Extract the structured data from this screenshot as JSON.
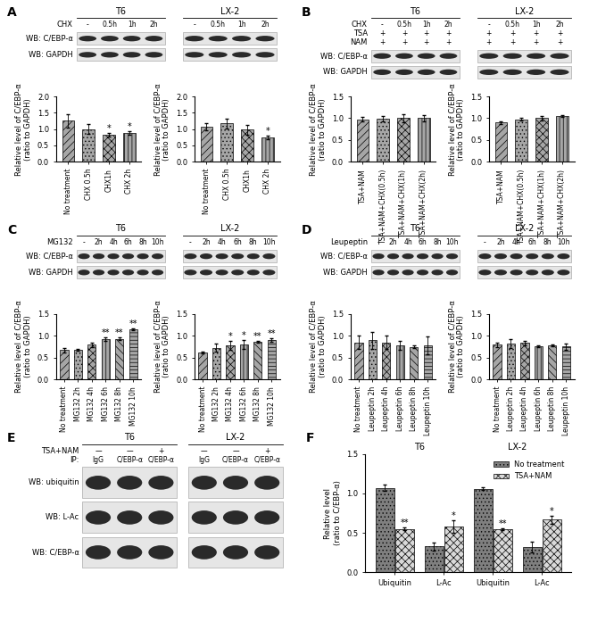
{
  "chart_data": [
    {
      "panel": "A",
      "type": "bar",
      "y_label": "Relative level of C/EBP-α\n(ratio to GAPDH)",
      "categories": [
        "No treatment",
        "CHX 0.5h",
        "CHX1h",
        "CHX 2h"
      ],
      "values": [
        1.25,
        1.0,
        0.82,
        0.88
      ],
      "errors": [
        0.2,
        0.15,
        0.05,
        0.05
      ],
      "annotations": [
        null,
        null,
        "*",
        "*"
      ],
      "color": "#a6a6a6",
      "ylim": [
        0,
        2
      ],
      "yticks": [
        {
          "value": 0,
          "label": "0.0"
        },
        0.5,
        {
          "value": 1,
          "label": "1.0"
        },
        1.5,
        {
          "value": 2,
          "label": "2.0"
        }
      ]
    },
    {
      "panel": "A",
      "type": "bar",
      "y_label": "Relative level of C/EBP-α\n(ratio to GAPDH)",
      "categories": [
        "No treatment",
        "CHX 0.5h",
        "CHX1h",
        "CHX 2h"
      ],
      "values": [
        1.07,
        1.18,
        0.98,
        0.75
      ],
      "errors": [
        0.12,
        0.15,
        0.15,
        0.05
      ],
      "annotations": [
        null,
        null,
        null,
        "*"
      ],
      "color": "#a6a6a6",
      "ylim": [
        0,
        2
      ],
      "yticks": [
        {
          "value": 0,
          "label": "0.0"
        },
        0.5,
        {
          "value": 1,
          "label": "1.0"
        },
        1.5,
        {
          "value": 2,
          "label": "2.0"
        }
      ]
    },
    {
      "panel": "B",
      "type": "bar",
      "y_label": "Relative level of C/EBP-α\n(ratio to GAPDH)",
      "categories": [
        "TSA+NAM",
        "TSA+NAM+CHX(0.5h)",
        "TSA+NAM+CHX(1h)",
        "TSA+NAM+CHX(2h)"
      ],
      "values": [
        0.97,
        0.98,
        1.0,
        1.0
      ],
      "errors": [
        0.05,
        0.06,
        0.1,
        0.07
      ],
      "annotations": [
        null,
        null,
        null,
        null
      ],
      "color": "#a6a6a6",
      "ylim": [
        0,
        1.5
      ],
      "yticks": [
        {
          "value": 0,
          "label": "0.0"
        },
        0.5,
        {
          "value": 1,
          "label": "1.0"
        },
        1.5
      ]
    },
    {
      "panel": "B",
      "type": "bar",
      "y_label": "Relative level of C/EBP-α\n(ratio to GAPDH)",
      "categories": [
        "TSA+NAM",
        "TSA+NAM+CHX(0.5h)",
        "TSA+NAM+CHX(1h)",
        "TSA+NAM+CHX(2h)"
      ],
      "values": [
        0.9,
        0.97,
        1.0,
        1.05
      ],
      "errors": [
        0.03,
        0.03,
        0.05,
        0.03
      ],
      "annotations": [
        null,
        null,
        null,
        null
      ],
      "color": "#a6a6a6",
      "ylim": [
        0,
        1.5
      ],
      "yticks": [
        {
          "value": 0,
          "label": "0.0"
        },
        0.5,
        {
          "value": 1,
          "label": "1.0"
        },
        1.5
      ]
    },
    {
      "panel": "C",
      "type": "bar",
      "y_label": "Relative level of C/EBP-α\n(ratio to GAPDH)",
      "categories": [
        "No treatment",
        "MG132 2h",
        "MG132 4h",
        "MG132 6h",
        "MG132 8h",
        "MG132 10h"
      ],
      "values": [
        0.67,
        0.68,
        0.8,
        0.92,
        0.93,
        1.15
      ],
      "errors": [
        0.05,
        0.03,
        0.05,
        0.04,
        0.03,
        0.02
      ],
      "annotations": [
        null,
        null,
        null,
        "**",
        "**",
        "**"
      ],
      "color": "#a6a6a6",
      "ylim": [
        0,
        1.5
      ],
      "yticks": [
        {
          "value": 0,
          "label": "0.0"
        },
        0.5,
        {
          "value": 1,
          "label": "1.0"
        },
        1.5
      ]
    },
    {
      "panel": "C",
      "type": "bar",
      "y_label": "Relative level of C/EBP-α\n(ratio to GAPDH)",
      "categories": [
        "No treatment",
        "MG132 2h",
        "MG132 4h",
        "MG132 6h",
        "MG132 8h",
        "MG132 10h"
      ],
      "values": [
        0.62,
        0.73,
        0.78,
        0.8,
        0.87,
        0.9
      ],
      "errors": [
        0.02,
        0.1,
        0.1,
        0.1,
        0.02,
        0.04
      ],
      "annotations": [
        null,
        null,
        "*",
        "*",
        "**",
        "**"
      ],
      "color": "#a6a6a6",
      "ylim": [
        0,
        1.5
      ],
      "yticks": [
        {
          "value": 0,
          "label": "0.0"
        },
        0.5,
        {
          "value": 1,
          "label": "1.0"
        },
        1.5
      ]
    },
    {
      "panel": "D",
      "type": "bar",
      "y_label": "Relative level of C/EBP-α\n(ratio to GAPDH)",
      "categories": [
        "No treatment",
        "Leupeptin 2h",
        "Leupeptin 4h",
        "Leupeptin 6h",
        "Leupeptin 8h",
        "Leupeptin 10h"
      ],
      "values": [
        0.85,
        0.9,
        0.85,
        0.78,
        0.75,
        0.78
      ],
      "errors": [
        0.15,
        0.2,
        0.15,
        0.1,
        0.03,
        0.2
      ],
      "annotations": [
        null,
        null,
        null,
        null,
        null,
        null
      ],
      "color": "#a6a6a6",
      "ylim": [
        0,
        1.5
      ],
      "yticks": [
        {
          "value": 0,
          "label": "0.0"
        },
        0.5,
        {
          "value": 1,
          "label": "1.0"
        },
        1.5
      ]
    },
    {
      "panel": "D",
      "type": "bar",
      "y_label": "Relative level of C/EBP-α\n(ratio to GAPDH)",
      "categories": [
        "No treatment",
        "Leupeptin 2h",
        "Leupeptin 4h",
        "Leupeptin 6h",
        "Leupeptin 8h",
        "Leupeptin 10h"
      ],
      "values": [
        0.8,
        0.82,
        0.84,
        0.76,
        0.79,
        0.76
      ],
      "errors": [
        0.05,
        0.1,
        0.05,
        0.02,
        0.02,
        0.07
      ],
      "annotations": [
        null,
        null,
        null,
        null,
        null,
        null
      ],
      "color": "#a6a6a6",
      "ylim": [
        0,
        1.5
      ],
      "yticks": [
        {
          "value": 0,
          "label": "0.0"
        },
        0.5,
        {
          "value": 1,
          "label": "1.0"
        },
        1.5
      ]
    },
    {
      "panel": "F",
      "type": "bar",
      "y_label": "Relative level\n(ratio to C/EBP-α)",
      "categories": [
        "Ubiquitin",
        "L-Ac",
        "Ubiquitin",
        "L-Ac"
      ],
      "group_labels": [
        "T6",
        "LX-2"
      ],
      "series": [
        {
          "name": "No treatment",
          "color": "#7f7f7f",
          "values": [
            1.07,
            0.33,
            1.06,
            0.32
          ],
          "errors": [
            0.04,
            0.05,
            0.02,
            0.07
          ],
          "annotations": [
            null,
            null,
            null,
            null
          ]
        },
        {
          "name": "TSA+NAM",
          "color": "#d9d9d9",
          "values": [
            0.55,
            0.58,
            0.55,
            0.67
          ],
          "errors": [
            0.02,
            0.08,
            0.01,
            0.05
          ],
          "annotations": [
            "**",
            "*",
            "**",
            "*"
          ]
        }
      ],
      "legend": "upper right",
      "ylim": [
        0,
        1.5
      ],
      "yticks": [
        {
          "value": 0,
          "label": "0.0"
        },
        0.5,
        {
          "value": 1,
          "label": "1.0"
        },
        1.5
      ]
    }
  ],
  "blots": [
    {
      "panel": "A",
      "groups": [
        "T6",
        "LX-2"
      ],
      "treatments": [
        {
          "name": "CHX",
          "lanes": [
            "-",
            "0.5h",
            "1h",
            "2h"
          ]
        }
      ],
      "rows": [
        "WB: C/EBP-α",
        "WB: GAPDH"
      ]
    },
    {
      "panel": "B",
      "groups": [
        "T6",
        "LX-2"
      ],
      "treatments": [
        {
          "name": "CHX",
          "lanes": [
            "-",
            "0.5h",
            "1h",
            "2h"
          ]
        },
        {
          "name": "TSA",
          "lanes": [
            "+",
            "+",
            "+",
            "+"
          ]
        },
        {
          "name": "NAM",
          "lanes": [
            "+",
            "+",
            "+",
            "+"
          ]
        }
      ],
      "rows": [
        "WB: C/EBP-α",
        "WB: GAPDH"
      ]
    },
    {
      "panel": "C",
      "groups": [
        "T6",
        "LX-2"
      ],
      "treatments": [
        {
          "name": "MG132",
          "lanes": [
            "-",
            "2h",
            "4h",
            "6h",
            "8h",
            "10h"
          ]
        }
      ],
      "rows": [
        "WB: C/EBP-α",
        "WB: GAPDH"
      ]
    },
    {
      "panel": "D",
      "groups": [
        "T6",
        "LX-2"
      ],
      "treatments": [
        {
          "name": "Leupeptin",
          "lanes": [
            "-",
            "2h",
            "4h",
            "6h",
            "8h",
            "10h"
          ]
        }
      ],
      "rows": [
        "WB: C/EBP-α",
        "WB: GAPDH"
      ]
    },
    {
      "panel": "E",
      "groups": [
        "T6",
        "LX-2"
      ],
      "treatments": [
        {
          "name": "TSA+NAM",
          "lanes": [
            "—",
            "—",
            "+"
          ]
        },
        {
          "name": "IP:",
          "lanes": [
            "IgG",
            "C/EBP-α",
            "C/EBP-α"
          ]
        }
      ],
      "rows": [
        "WB: ubiquitin",
        "WB: L-Ac",
        "WB: C/EBP-α"
      ]
    }
  ]
}
